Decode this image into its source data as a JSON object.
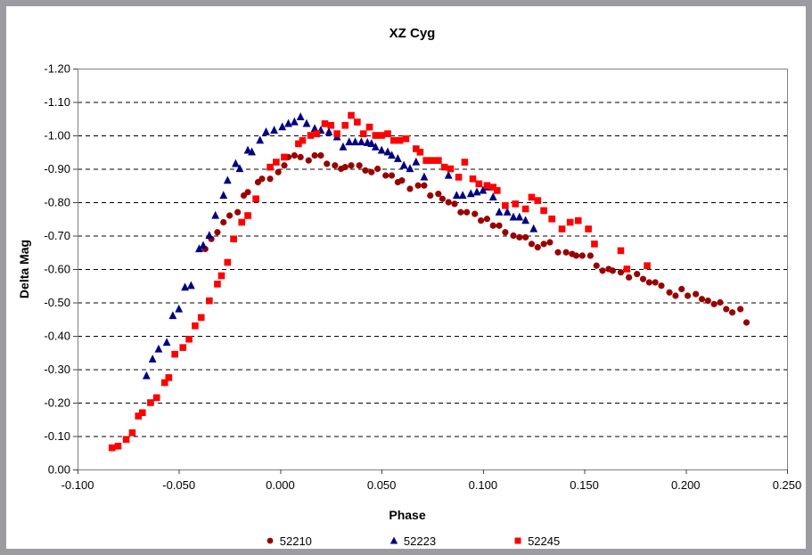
{
  "window": {
    "frame_border_color": "#9b9ba1",
    "background_color": "#ffffff",
    "plot_border_color": "#808080"
  },
  "chart_data": {
    "type": "scatter",
    "title": "XZ Cyg",
    "xlabel": "Phase",
    "ylabel": "Delta Mag",
    "xlim": [
      -0.1,
      0.25
    ],
    "ylim_top": -1.2,
    "ylim_bottom": 0.0,
    "grid": "horizontal dashed lines every 0.10, no vertical gridlines",
    "legend_position": "bottom-center",
    "x_ticks": [
      "-0.100",
      "-0.050",
      "0.000",
      "0.050",
      "0.100",
      "0.150",
      "0.200",
      "0.250"
    ],
    "y_ticks": [
      "-1.20",
      "-1.10",
      "-1.00",
      "-0.90",
      "-0.80",
      "-0.70",
      "-0.60",
      "-0.50",
      "-0.40",
      "-0.30",
      "-0.20",
      "-0.10",
      "0.00"
    ],
    "series": [
      {
        "name": "52210",
        "marker": "circle",
        "color": "#990000",
        "points": [
          [
            -0.037,
            -0.66
          ],
          [
            -0.034,
            -0.69
          ],
          [
            -0.031,
            -0.71
          ],
          [
            -0.028,
            -0.74
          ],
          [
            -0.025,
            -0.76
          ],
          [
            -0.021,
            -0.77
          ],
          [
            -0.018,
            -0.82
          ],
          [
            -0.016,
            -0.83
          ],
          [
            -0.011,
            -0.86
          ],
          [
            -0.009,
            -0.87
          ],
          [
            -0.005,
            -0.87
          ],
          [
            -0.001,
            -0.89
          ],
          [
            0.002,
            -0.91
          ],
          [
            0.004,
            -0.935
          ],
          [
            0.007,
            -0.94
          ],
          [
            0.01,
            -0.935
          ],
          [
            0.014,
            -0.925
          ],
          [
            0.017,
            -0.94
          ],
          [
            0.02,
            -0.94
          ],
          [
            0.023,
            -0.915
          ],
          [
            0.027,
            -0.91
          ],
          [
            0.03,
            -0.9
          ],
          [
            0.032,
            -0.905
          ],
          [
            0.035,
            -0.91
          ],
          [
            0.039,
            -0.91
          ],
          [
            0.042,
            -0.895
          ],
          [
            0.045,
            -0.89
          ],
          [
            0.048,
            -0.9
          ],
          [
            0.052,
            -0.88
          ],
          [
            0.055,
            -0.88
          ],
          [
            0.058,
            -0.86
          ],
          [
            0.06,
            -0.865
          ],
          [
            0.064,
            -0.84
          ],
          [
            0.068,
            -0.85
          ],
          [
            0.071,
            -0.85
          ],
          [
            0.074,
            -0.82
          ],
          [
            0.078,
            -0.825
          ],
          [
            0.08,
            -0.81
          ],
          [
            0.083,
            -0.8
          ],
          [
            0.086,
            -0.795
          ],
          [
            0.089,
            -0.77
          ],
          [
            0.092,
            -0.77
          ],
          [
            0.096,
            -0.765
          ],
          [
            0.099,
            -0.745
          ],
          [
            0.102,
            -0.75
          ],
          [
            0.105,
            -0.73
          ],
          [
            0.108,
            -0.73
          ],
          [
            0.111,
            -0.71
          ],
          [
            0.115,
            -0.7
          ],
          [
            0.118,
            -0.695
          ],
          [
            0.121,
            -0.695
          ],
          [
            0.124,
            -0.675
          ],
          [
            0.127,
            -0.665
          ],
          [
            0.13,
            -0.675
          ],
          [
            0.133,
            -0.68
          ],
          [
            0.137,
            -0.65
          ],
          [
            0.141,
            -0.65
          ],
          [
            0.144,
            -0.645
          ],
          [
            0.146,
            -0.64
          ],
          [
            0.149,
            -0.64
          ],
          [
            0.153,
            -0.64
          ],
          [
            0.156,
            -0.61
          ],
          [
            0.159,
            -0.595
          ],
          [
            0.162,
            -0.6
          ],
          [
            0.164,
            -0.595
          ],
          [
            0.168,
            -0.59
          ],
          [
            0.172,
            -0.575
          ],
          [
            0.176,
            -0.585
          ],
          [
            0.179,
            -0.57
          ],
          [
            0.182,
            -0.56
          ],
          [
            0.185,
            -0.56
          ],
          [
            0.188,
            -0.55
          ],
          [
            0.192,
            -0.53
          ],
          [
            0.195,
            -0.52
          ],
          [
            0.198,
            -0.54
          ],
          [
            0.201,
            -0.52
          ],
          [
            0.205,
            -0.525
          ],
          [
            0.208,
            -0.51
          ],
          [
            0.211,
            -0.505
          ],
          [
            0.214,
            -0.495
          ],
          [
            0.217,
            -0.5
          ],
          [
            0.22,
            -0.48
          ],
          [
            0.223,
            -0.47
          ],
          [
            0.227,
            -0.48
          ],
          [
            0.23,
            -0.44
          ]
        ]
      },
      {
        "name": "52223",
        "marker": "triangle",
        "color": "#000080",
        "points": [
          [
            -0.066,
            -0.28
          ],
          [
            -0.063,
            -0.33
          ],
          [
            -0.06,
            -0.36
          ],
          [
            -0.056,
            -0.38
          ],
          [
            -0.053,
            -0.46
          ],
          [
            -0.05,
            -0.48
          ],
          [
            -0.047,
            -0.545
          ],
          [
            -0.044,
            -0.55
          ],
          [
            -0.04,
            -0.66
          ],
          [
            -0.038,
            -0.67
          ],
          [
            -0.035,
            -0.7
          ],
          [
            -0.032,
            -0.76
          ],
          [
            -0.028,
            -0.82
          ],
          [
            -0.026,
            -0.865
          ],
          [
            -0.022,
            -0.915
          ],
          [
            -0.02,
            -0.9
          ],
          [
            -0.016,
            -0.955
          ],
          [
            -0.014,
            -0.95
          ],
          [
            -0.01,
            -0.985
          ],
          [
            -0.007,
            -1.01
          ],
          [
            -0.003,
            -1.015
          ],
          [
            0.001,
            -1.025
          ],
          [
            0.004,
            -1.035
          ],
          [
            0.007,
            -1.04
          ],
          [
            0.01,
            -1.055
          ],
          [
            0.013,
            -1.035
          ],
          [
            0.017,
            -1.02
          ],
          [
            0.02,
            -1.015
          ],
          [
            0.024,
            -1.01
          ],
          [
            0.028,
            -0.995
          ],
          [
            0.031,
            -0.965
          ],
          [
            0.034,
            -0.98
          ],
          [
            0.037,
            -0.98
          ],
          [
            0.04,
            -0.98
          ],
          [
            0.043,
            -0.978
          ],
          [
            0.045,
            -0.975
          ],
          [
            0.047,
            -0.965
          ],
          [
            0.05,
            -0.955
          ],
          [
            0.053,
            -0.95
          ],
          [
            0.055,
            -0.94
          ],
          [
            0.058,
            -0.93
          ],
          [
            0.061,
            -0.91
          ],
          [
            0.064,
            -0.9
          ],
          [
            0.067,
            -0.92
          ],
          [
            0.071,
            -0.875
          ],
          [
            0.083,
            -0.88
          ],
          [
            0.087,
            -0.82
          ],
          [
            0.09,
            -0.82
          ],
          [
            0.094,
            -0.825
          ],
          [
            0.097,
            -0.83
          ],
          [
            0.1,
            -0.835
          ],
          [
            0.102,
            -0.845
          ],
          [
            0.105,
            -0.815
          ],
          [
            0.108,
            -0.77
          ],
          [
            0.112,
            -0.77
          ],
          [
            0.115,
            -0.755
          ],
          [
            0.118,
            -0.755
          ],
          [
            0.121,
            -0.745
          ],
          [
            0.125,
            -0.72
          ]
        ]
      },
      {
        "name": "52245",
        "marker": "square",
        "color": "#FF0000",
        "points": [
          [
            -0.083,
            -0.065
          ],
          [
            -0.08,
            -0.07
          ],
          [
            -0.076,
            -0.09
          ],
          [
            -0.073,
            -0.11
          ],
          [
            -0.07,
            -0.16
          ],
          [
            -0.068,
            -0.17
          ],
          [
            -0.064,
            -0.2
          ],
          [
            -0.061,
            -0.215
          ],
          [
            -0.057,
            -0.26
          ],
          [
            -0.055,
            -0.275
          ],
          [
            -0.052,
            -0.345
          ],
          [
            -0.048,
            -0.365
          ],
          [
            -0.045,
            -0.39
          ],
          [
            -0.042,
            -0.43
          ],
          [
            -0.039,
            -0.455
          ],
          [
            -0.035,
            -0.505
          ],
          [
            -0.031,
            -0.555
          ],
          [
            -0.029,
            -0.58
          ],
          [
            -0.026,
            -0.62
          ],
          [
            -0.023,
            -0.69
          ],
          [
            -0.019,
            -0.74
          ],
          [
            -0.016,
            -0.76
          ],
          [
            -0.012,
            -0.81
          ],
          [
            -0.005,
            -0.905
          ],
          [
            -0.002,
            -0.92
          ],
          [
            0.002,
            -0.935
          ],
          [
            0.009,
            -0.975
          ],
          [
            0.011,
            -0.985
          ],
          [
            0.015,
            -1.0
          ],
          [
            0.018,
            -1.005
          ],
          [
            0.022,
            -1.035
          ],
          [
            0.025,
            -1.03
          ],
          [
            0.028,
            -1.005
          ],
          [
            0.032,
            -1.03
          ],
          [
            0.035,
            -1.06
          ],
          [
            0.038,
            -1.04
          ],
          [
            0.041,
            -1.005
          ],
          [
            0.044,
            -1.025
          ],
          [
            0.047,
            -1.0
          ],
          [
            0.05,
            -1.0
          ],
          [
            0.053,
            -1.005
          ],
          [
            0.056,
            -0.985
          ],
          [
            0.059,
            -0.985
          ],
          [
            0.062,
            -0.99
          ],
          [
            0.067,
            -0.96
          ],
          [
            0.069,
            -0.95
          ],
          [
            0.072,
            -0.925
          ],
          [
            0.075,
            -0.925
          ],
          [
            0.078,
            -0.925
          ],
          [
            0.081,
            -0.905
          ],
          [
            0.084,
            -0.9
          ],
          [
            0.088,
            -0.875
          ],
          [
            0.091,
            -0.92
          ],
          [
            0.095,
            -0.87
          ],
          [
            0.098,
            -0.855
          ],
          [
            0.102,
            -0.85
          ],
          [
            0.105,
            -0.845
          ],
          [
            0.107,
            -0.835
          ],
          [
            0.111,
            -0.79
          ],
          [
            0.116,
            -0.795
          ],
          [
            0.121,
            -0.78
          ],
          [
            0.124,
            -0.815
          ],
          [
            0.127,
            -0.805
          ],
          [
            0.13,
            -0.775
          ],
          [
            0.134,
            -0.75
          ],
          [
            0.139,
            -0.72
          ],
          [
            0.143,
            -0.74
          ],
          [
            0.147,
            -0.745
          ],
          [
            0.152,
            -0.72
          ],
          [
            0.155,
            -0.675
          ],
          [
            0.168,
            -0.655
          ],
          [
            0.171,
            -0.6
          ],
          [
            0.181,
            -0.61
          ]
        ]
      }
    ]
  }
}
